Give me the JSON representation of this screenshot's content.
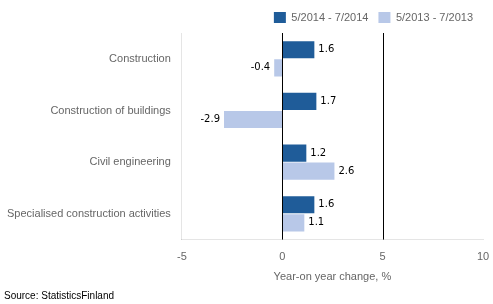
{
  "chart_data": {
    "type": "bar",
    "orientation": "horizontal",
    "categories": [
      "Construction",
      "Construction of buildings",
      "Civil engineering",
      "Specialised construction activities"
    ],
    "series": [
      {
        "name": "5/2014 - 7/2014",
        "color": "#1F5C99",
        "values": [
          1.6,
          1.7,
          1.2,
          1.6
        ]
      },
      {
        "name": "5/2013 - 7/2013",
        "color": "#B8C8E8",
        "values": [
          -0.4,
          -2.9,
          2.6,
          1.1
        ]
      }
    ],
    "xlabel": "Year-on year change, %",
    "xlim": [
      -5,
      10
    ],
    "xticks": [
      -5,
      0,
      5,
      10
    ],
    "vlines": [
      0,
      5
    ],
    "data_labels": true,
    "legend": "upper right",
    "grid": false,
    "annotations": [
      "Source: StatisticsFinland"
    ]
  }
}
